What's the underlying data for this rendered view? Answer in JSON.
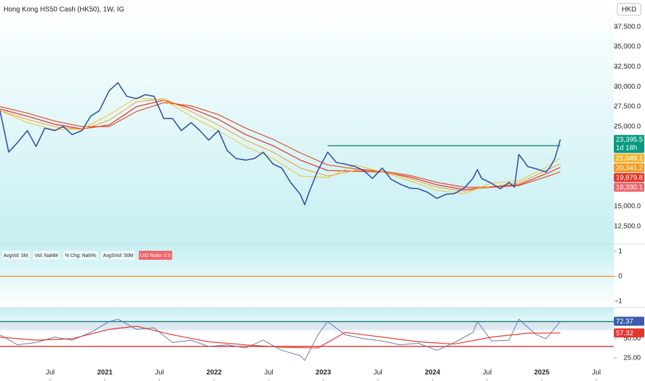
{
  "header": {
    "title": "Hong Kong HS50 Cash (HK50), 1W, IG",
    "currency": "HKD"
  },
  "chart_data": [
    {
      "type": "line",
      "xlim": [
        2020.04,
        2025.66
      ],
      "xticks": [
        {
          "value": 2020.5,
          "label": "Jul"
        },
        2021,
        {
          "value": 2021.5,
          "label": "Jul"
        },
        2022,
        {
          "value": 2022.5,
          "label": "Jul"
        },
        2023,
        {
          "value": 2023.5,
          "label": "Jul"
        },
        2024,
        {
          "value": 2024.5,
          "label": "Jul"
        },
        2025,
        {
          "value": 2025.5,
          "label": "Jul"
        }
      ],
      "ylim": [
        10300,
        40870
      ],
      "yticks": [
        {
          "value": 12500,
          "label": "12,500.0"
        },
        {
          "value": 15000,
          "label": "15,000.0"
        },
        {
          "value": 25000,
          "label": "25,000.0"
        },
        {
          "value": 27500,
          "label": "27,500.0"
        },
        {
          "value": 30000,
          "label": "30,000.0"
        },
        {
          "value": 32500,
          "label": "32,500.0"
        },
        {
          "value": 35000,
          "label": "35,000.0"
        },
        {
          "value": 37500,
          "label": "37,500.0"
        }
      ],
      "series": [
        {
          "color": "#dc5a3a",
          "width": 1.3,
          "x": [
            2020.04,
            2020.29,
            2020.54,
            2020.79,
            2021.04,
            2021.29,
            2021.54,
            2021.79,
            2022.04,
            2022.29,
            2022.54,
            2022.79,
            2023.04,
            2023.29,
            2023.54,
            2023.79,
            2024.04,
            2024.29,
            2024.54,
            2024.79,
            2025.04,
            2025.17
          ],
          "values": [
            27500,
            26700,
            25700,
            25000,
            25000,
            26900,
            28000,
            27600,
            26500,
            24800,
            23400,
            21700,
            20200,
            19700,
            19400,
            18900,
            18000,
            17400,
            17400,
            17600,
            18700,
            19330.1
          ]
        },
        {
          "color": "#e5352d",
          "width": 1.3,
          "x": [
            2020.04,
            2020.29,
            2020.54,
            2020.79,
            2021.04,
            2021.29,
            2021.54,
            2021.79,
            2022.04,
            2022.29,
            2022.54,
            2022.79,
            2023.04,
            2023.29,
            2023.54,
            2023.79,
            2024.04,
            2024.29,
            2024.54,
            2024.79,
            2025.04,
            2025.17
          ],
          "values": [
            27200,
            26300,
            25300,
            24700,
            25200,
            27500,
            28300,
            27300,
            25900,
            24000,
            22600,
            20800,
            19500,
            19400,
            19300,
            18700,
            17700,
            17100,
            17400,
            17700,
            19100,
            19879.8
          ]
        },
        {
          "color": "#f59a23",
          "width": 1,
          "x": [
            2020.04,
            2020.29,
            2020.54,
            2020.79,
            2021.04,
            2021.29,
            2021.54,
            2021.79,
            2022.04,
            2022.29,
            2022.54,
            2022.79,
            2023.04,
            2023.29,
            2023.54,
            2023.79,
            2024.04,
            2024.29,
            2024.54,
            2024.79,
            2025.04,
            2025.17
          ],
          "values": [
            27000,
            25900,
            25000,
            24600,
            25800,
            28100,
            28500,
            26900,
            25200,
            23300,
            21800,
            19800,
            18800,
            19500,
            19400,
            18500,
            17400,
            16900,
            17500,
            17900,
            19500,
            20341.2
          ]
        },
        {
          "color": "#f2c12e",
          "width": 1,
          "x": [
            2020.04,
            2020.29,
            2020.54,
            2020.79,
            2021.04,
            2021.29,
            2021.54,
            2021.79,
            2022.04,
            2022.29,
            2022.54,
            2022.79,
            2023.04,
            2023.29,
            2023.54,
            2023.79,
            2024.04,
            2024.29,
            2024.54,
            2024.79,
            2025.04,
            2025.17
          ],
          "values": [
            27000,
            25500,
            24600,
            24700,
            26500,
            28600,
            28300,
            26300,
            24500,
            22500,
            21000,
            18800,
            18600,
            20200,
            19300,
            18200,
            17000,
            16600,
            17900,
            18200,
            19900,
            21049.1
          ]
        },
        {
          "color": "#2f4fa2",
          "width": 1.6,
          "x": [
            2020.04,
            2020.12,
            2020.2,
            2020.29,
            2020.37,
            2020.45,
            2020.54,
            2020.62,
            2020.7,
            2020.79,
            2020.87,
            2020.95,
            2021.04,
            2021.12,
            2021.2,
            2021.29,
            2021.37,
            2021.45,
            2021.54,
            2021.62,
            2021.7,
            2021.79,
            2021.87,
            2021.95,
            2022.04,
            2022.12,
            2022.2,
            2022.29,
            2022.37,
            2022.45,
            2022.54,
            2022.62,
            2022.7,
            2022.79,
            2022.83,
            2022.87,
            2022.95,
            2023.04,
            2023.12,
            2023.2,
            2023.29,
            2023.37,
            2023.45,
            2023.54,
            2023.62,
            2023.7,
            2023.79,
            2023.87,
            2023.95,
            2024.04,
            2024.12,
            2024.2,
            2024.29,
            2024.37,
            2024.41,
            2024.45,
            2024.54,
            2024.62,
            2024.7,
            2024.75,
            2024.79,
            2024.83,
            2024.87,
            2024.95,
            2025.04,
            2025.08,
            2025.12,
            2025.17
          ],
          "values": [
            27000,
            21800,
            23000,
            24500,
            22500,
            24800,
            24500,
            25000,
            24000,
            24500,
            26300,
            27000,
            29500,
            30500,
            28800,
            28500,
            29000,
            28800,
            26000,
            26000,
            24500,
            25500,
            24500,
            23300,
            24500,
            22000,
            21000,
            20800,
            21000,
            21800,
            20300,
            19800,
            18000,
            16500,
            15200,
            16800,
            19500,
            21800,
            20500,
            20300,
            20000,
            19500,
            18500,
            19800,
            18400,
            17800,
            17300,
            17200,
            16800,
            16000,
            16500,
            16600,
            17300,
            18500,
            19600,
            18500,
            17900,
            17200,
            18000,
            17400,
            21500,
            20800,
            20000,
            19700,
            19300,
            20000,
            21000,
            23395.5
          ]
        }
      ],
      "level_lines": [
        {
          "value": 22600,
          "x": [
            2023.04,
            2025.17
          ],
          "color": "#1e8a7a"
        }
      ],
      "price_labels": [
        {
          "value": 23395.5,
          "label": "23,395.5",
          "countdown": "1d 18h",
          "color": "#089981"
        },
        {
          "value": 21049.1,
          "label": "21,049.1",
          "color": "#f2b52e"
        },
        {
          "value": 20341.2,
          "label": "20,341.2",
          "color": "#f59a23"
        },
        {
          "value": 19879.8,
          "label": "19,879.8",
          "color": "#e5352d"
        },
        {
          "value": 19330.1,
          "label": "19,330.1",
          "color": "#f0646a"
        }
      ]
    },
    {
      "type": "line",
      "ylim": [
        -1.25,
        1.3
      ],
      "yticks": [
        -1,
        0,
        1
      ],
      "level_lines": [
        {
          "value": 0,
          "color": "#f59a23"
        }
      ],
      "legend": [
        "AvgVol: 0M",
        "Vol: NaNM",
        "% Chg: NaN%",
        "AvgSVol: 50M",
        "U/D Ratio: 0.0"
      ]
    },
    {
      "type": "line",
      "ylim": [
        -4.5,
        90
      ],
      "yticks": [
        {
          "value": 25,
          "label": "25.00"
        },
        {
          "value": 50,
          "label": "50.00"
        }
      ],
      "band": [
        61,
        72
      ],
      "level_lines": [
        {
          "value": 72,
          "color": "#1e7d7d"
        },
        {
          "value": 40,
          "color": "#e53935"
        }
      ],
      "series": [
        {
          "color": "#6677aa",
          "width": 1,
          "x": [
            2020.04,
            2020.2,
            2020.37,
            2020.54,
            2020.7,
            2020.87,
            2021.04,
            2021.12,
            2021.29,
            2021.45,
            2021.62,
            2021.79,
            2021.95,
            2022.12,
            2022.29,
            2022.45,
            2022.62,
            2022.79,
            2022.83,
            2022.95,
            2023.04,
            2023.2,
            2023.37,
            2023.54,
            2023.7,
            2023.87,
            2024.04,
            2024.2,
            2024.37,
            2024.41,
            2024.54,
            2024.7,
            2024.79,
            2024.95,
            2025.04,
            2025.17
          ],
          "values": [
            55,
            42,
            45,
            52,
            48,
            58,
            72,
            75,
            62,
            64,
            45,
            48,
            40,
            42,
            38,
            48,
            35,
            28,
            22,
            55,
            72,
            55,
            50,
            47,
            42,
            44,
            35,
            45,
            58,
            72,
            47,
            48,
            75,
            55,
            50,
            72.37
          ]
        },
        {
          "color": "#e5352d",
          "width": 1.2,
          "x": [
            2020.04,
            2020.37,
            2020.7,
            2021.04,
            2021.29,
            2021.62,
            2021.95,
            2022.29,
            2022.62,
            2022.95,
            2023.2,
            2023.54,
            2023.87,
            2024.2,
            2024.54,
            2024.87,
            2025.17
          ],
          "values": [
            52,
            48,
            50,
            62,
            66,
            55,
            46,
            42,
            39,
            38,
            58,
            52,
            46,
            43,
            52,
            57,
            57.32
          ]
        }
      ],
      "price_labels": [
        {
          "value": 72.37,
          "label": "72.37",
          "color": "#3b5bab"
        },
        {
          "value": 57.32,
          "label": "57.32",
          "color": "#e5352d"
        }
      ]
    }
  ]
}
